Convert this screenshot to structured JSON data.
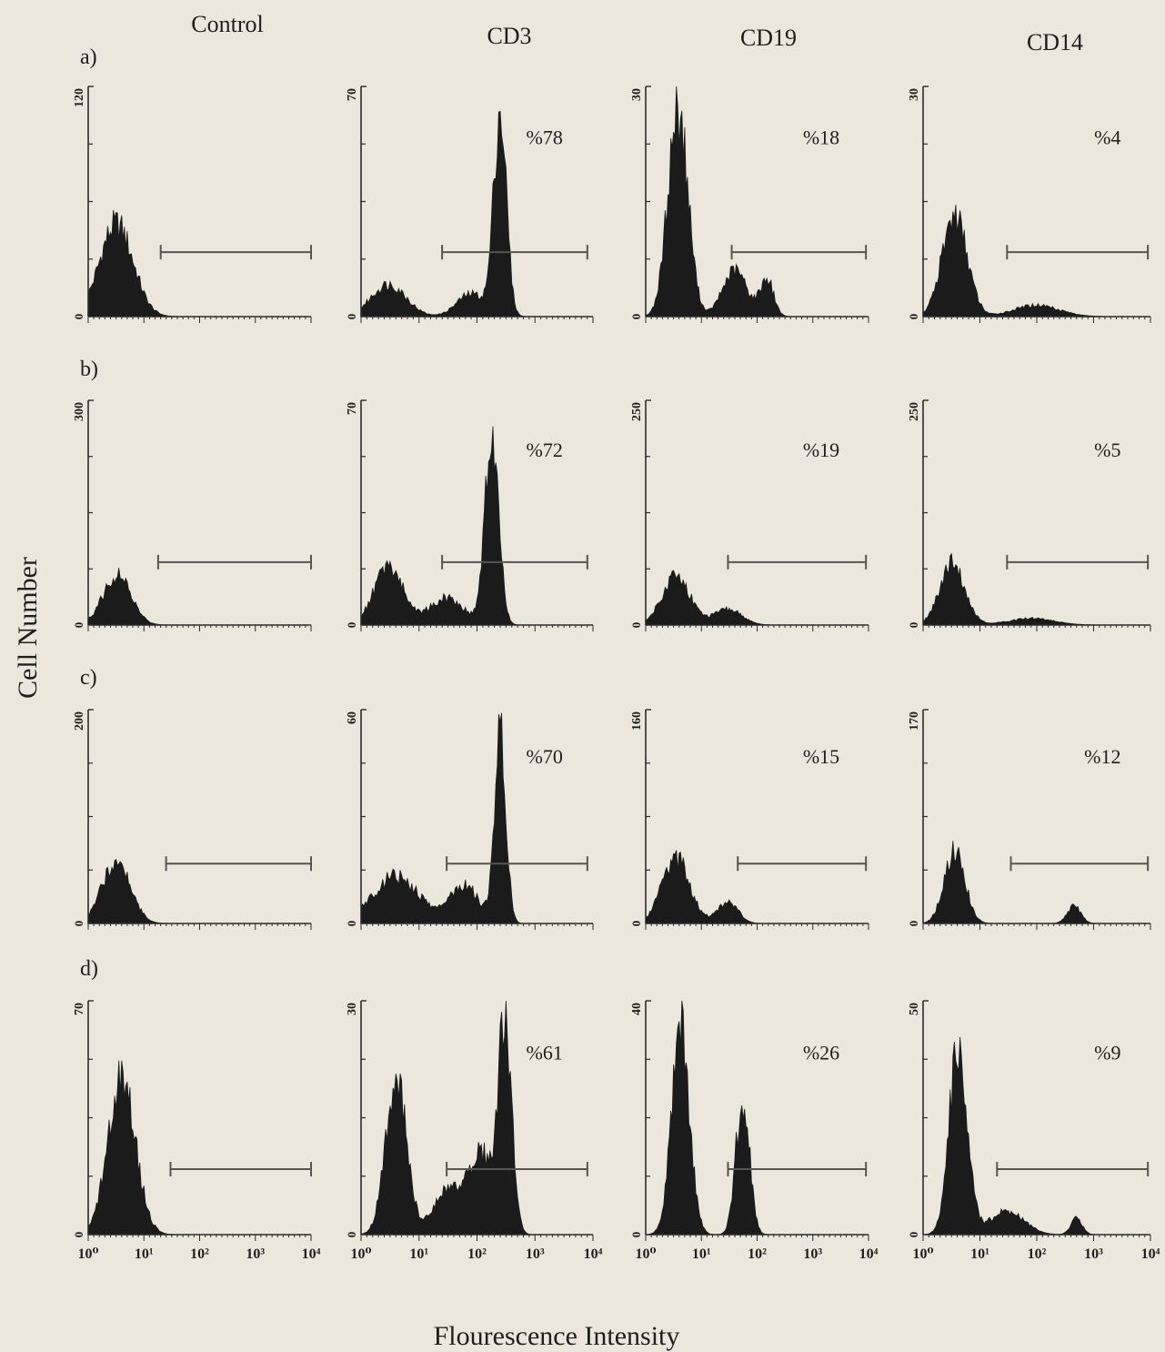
{
  "figure": {
    "column_headers": [
      "Control",
      "CD3",
      "CD19",
      "CD14"
    ],
    "row_labels": [
      "a)",
      "b)",
      "c)",
      "d)"
    ],
    "y_axis_label": "Cell Number",
    "x_axis_label": "Flourescence Intensity",
    "x_tick_labels": [
      "10⁰",
      "10¹",
      "10²",
      "10³",
      "10⁴"
    ],
    "colors": {
      "fill": "#1b1b1b",
      "axis": "#2a2a2a",
      "gate": "#555555",
      "background": "#ebe7dc"
    }
  },
  "chart_data": [
    {
      "type": "area",
      "row": "a)",
      "column": "Control",
      "x_scale": "log",
      "xlim": [
        1,
        10000
      ],
      "ylim": [
        0,
        120
      ],
      "y_ticks": [
        "120",
        "0"
      ],
      "gate": [
        20,
        10000
      ],
      "percent_label": "",
      "peaks": [
        {
          "x": 3.2,
          "height": 0.4,
          "width": 0.3
        }
      ]
    },
    {
      "type": "area",
      "row": "a)",
      "column": "CD3",
      "x_scale": "log",
      "xlim": [
        1,
        10000
      ],
      "ylim": [
        0,
        70
      ],
      "y_ticks": [
        "70",
        "0"
      ],
      "gate": [
        25,
        8000
      ],
      "percent_label": "%78",
      "peaks": [
        {
          "x": 3,
          "height": 0.14,
          "width": 0.3
        },
        {
          "x": 250,
          "height": 0.88,
          "width": 0.11
        },
        {
          "x": 80,
          "height": 0.1,
          "width": 0.25
        }
      ]
    },
    {
      "type": "area",
      "row": "a)",
      "column": "CD19",
      "x_scale": "log",
      "xlim": [
        1,
        10000
      ],
      "ylim": [
        0,
        30
      ],
      "y_ticks": [
        "30",
        "0"
      ],
      "gate": [
        35,
        9000
      ],
      "percent_label": "%18",
      "peaks": [
        {
          "x": 3.8,
          "height": 0.9,
          "width": 0.18
        },
        {
          "x": 40,
          "height": 0.2,
          "width": 0.22
        },
        {
          "x": 150,
          "height": 0.16,
          "width": 0.12
        }
      ]
    },
    {
      "type": "area",
      "row": "a)",
      "column": "CD14",
      "x_scale": "log",
      "xlim": [
        1,
        10000
      ],
      "ylim": [
        0,
        30
      ],
      "y_ticks": [
        "30",
        "0"
      ],
      "gate": [
        30,
        9000
      ],
      "percent_label": "%4",
      "peaks": [
        {
          "x": 3.6,
          "height": 0.44,
          "width": 0.22
        },
        {
          "x": 100,
          "height": 0.05,
          "width": 0.4
        }
      ]
    },
    {
      "type": "area",
      "row": "b)",
      "column": "Control",
      "x_scale": "log",
      "xlim": [
        1,
        10000
      ],
      "ylim": [
        0,
        300
      ],
      "y_ticks": [
        "300",
        "0"
      ],
      "gate": [
        18,
        10000
      ],
      "percent_label": "",
      "peaks": [
        {
          "x": 3.3,
          "height": 0.22,
          "width": 0.25
        }
      ]
    },
    {
      "type": "area",
      "row": "b)",
      "column": "CD3",
      "x_scale": "log",
      "xlim": [
        1,
        10000
      ],
      "ylim": [
        0,
        70
      ],
      "y_ticks": [
        "70",
        "0"
      ],
      "gate": [
        25,
        8000
      ],
      "percent_label": "%72",
      "peaks": [
        {
          "x": 3,
          "height": 0.26,
          "width": 0.25
        },
        {
          "x": 180,
          "height": 0.82,
          "width": 0.12
        },
        {
          "x": 30,
          "height": 0.12,
          "width": 0.3
        }
      ]
    },
    {
      "type": "area",
      "row": "b)",
      "column": "CD19",
      "x_scale": "log",
      "xlim": [
        1,
        10000
      ],
      "ylim": [
        0,
        250
      ],
      "y_ticks": [
        "250",
        "0"
      ],
      "gate": [
        30,
        9000
      ],
      "percent_label": "%19",
      "peaks": [
        {
          "x": 3.5,
          "height": 0.22,
          "width": 0.25
        },
        {
          "x": 30,
          "height": 0.07,
          "width": 0.25
        }
      ]
    },
    {
      "type": "area",
      "row": "b)",
      "column": "CD14",
      "x_scale": "log",
      "xlim": [
        1,
        10000
      ],
      "ylim": [
        0,
        250
      ],
      "y_ticks": [
        "250",
        "0"
      ],
      "gate": [
        30,
        9000
      ],
      "percent_label": "%5",
      "peaks": [
        {
          "x": 3.3,
          "height": 0.27,
          "width": 0.22
        },
        {
          "x": 80,
          "height": 0.03,
          "width": 0.4
        }
      ]
    },
    {
      "type": "area",
      "row": "c)",
      "column": "Control",
      "x_scale": "log",
      "xlim": [
        1,
        10000
      ],
      "ylim": [
        0,
        200
      ],
      "y_ticks": [
        "200",
        "0"
      ],
      "gate": [
        25,
        10000
      ],
      "percent_label": "",
      "peaks": [
        {
          "x": 3.2,
          "height": 0.3,
          "width": 0.25
        }
      ]
    },
    {
      "type": "area",
      "row": "c)",
      "column": "CD3",
      "x_scale": "log",
      "xlim": [
        1,
        10000
      ],
      "ylim": [
        0,
        60
      ],
      "y_ticks": [
        "60",
        "0"
      ],
      "gate": [
        30,
        8000
      ],
      "percent_label": "%70",
      "peaks": [
        {
          "x": 4,
          "height": 0.22,
          "width": 0.4
        },
        {
          "x": 250,
          "height": 0.88,
          "width": 0.1
        },
        {
          "x": 60,
          "height": 0.18,
          "width": 0.25
        }
      ]
    },
    {
      "type": "area",
      "row": "c)",
      "column": "CD19",
      "x_scale": "log",
      "xlim": [
        1,
        10000
      ],
      "ylim": [
        0,
        160
      ],
      "y_ticks": [
        "160",
        "0"
      ],
      "gate": [
        45,
        9000
      ],
      "percent_label": "%15",
      "peaks": [
        {
          "x": 3.5,
          "height": 0.3,
          "width": 0.25
        },
        {
          "x": 30,
          "height": 0.1,
          "width": 0.18
        }
      ]
    },
    {
      "type": "area",
      "row": "c)",
      "column": "CD14",
      "x_scale": "log",
      "xlim": [
        1,
        10000
      ],
      "ylim": [
        0,
        170
      ],
      "y_ticks": [
        "170",
        "0"
      ],
      "gate": [
        35,
        9000
      ],
      "percent_label": "%12",
      "peaks": [
        {
          "x": 3.6,
          "height": 0.34,
          "width": 0.18
        },
        {
          "x": 450,
          "height": 0.08,
          "width": 0.12
        }
      ]
    },
    {
      "type": "area",
      "row": "d)",
      "column": "Control",
      "x_scale": "log",
      "xlim": [
        1,
        10000
      ],
      "ylim": [
        0,
        70
      ],
      "y_ticks": [
        "70",
        "0"
      ],
      "gate": [
        30,
        10000
      ],
      "percent_label": "",
      "peaks": [
        {
          "x": 4,
          "height": 0.65,
          "width": 0.25
        }
      ]
    },
    {
      "type": "area",
      "row": "d)",
      "column": "CD3",
      "x_scale": "log",
      "xlim": [
        1,
        10000
      ],
      "ylim": [
        0,
        30
      ],
      "y_ticks": [
        "30",
        "0"
      ],
      "gate": [
        30,
        8000
      ],
      "percent_label": "%61",
      "peaks": [
        {
          "x": 4,
          "height": 0.66,
          "width": 0.18
        },
        {
          "x": 300,
          "height": 0.95,
          "width": 0.12
        },
        {
          "x": 40,
          "height": 0.22,
          "width": 0.3
        },
        {
          "x": 120,
          "height": 0.3,
          "width": 0.15
        }
      ]
    },
    {
      "type": "area",
      "row": "d)",
      "column": "CD19",
      "x_scale": "log",
      "xlim": [
        1,
        10000
      ],
      "ylim": [
        0,
        40
      ],
      "y_ticks": [
        "40",
        "0"
      ],
      "gate": [
        30,
        9000
      ],
      "percent_label": "%26",
      "peaks": [
        {
          "x": 4.2,
          "height": 0.88,
          "width": 0.16
        },
        {
          "x": 55,
          "height": 0.6,
          "width": 0.12
        }
      ]
    },
    {
      "type": "area",
      "row": "d)",
      "column": "CD14",
      "x_scale": "log",
      "xlim": [
        1,
        10000
      ],
      "ylim": [
        0,
        50
      ],
      "y_ticks": [
        "50",
        "0"
      ],
      "gate": [
        20,
        9000
      ],
      "percent_label": "%9",
      "peaks": [
        {
          "x": 4.2,
          "height": 0.82,
          "width": 0.16
        },
        {
          "x": 30,
          "height": 0.1,
          "width": 0.3
        },
        {
          "x": 500,
          "height": 0.07,
          "width": 0.1
        }
      ]
    }
  ]
}
